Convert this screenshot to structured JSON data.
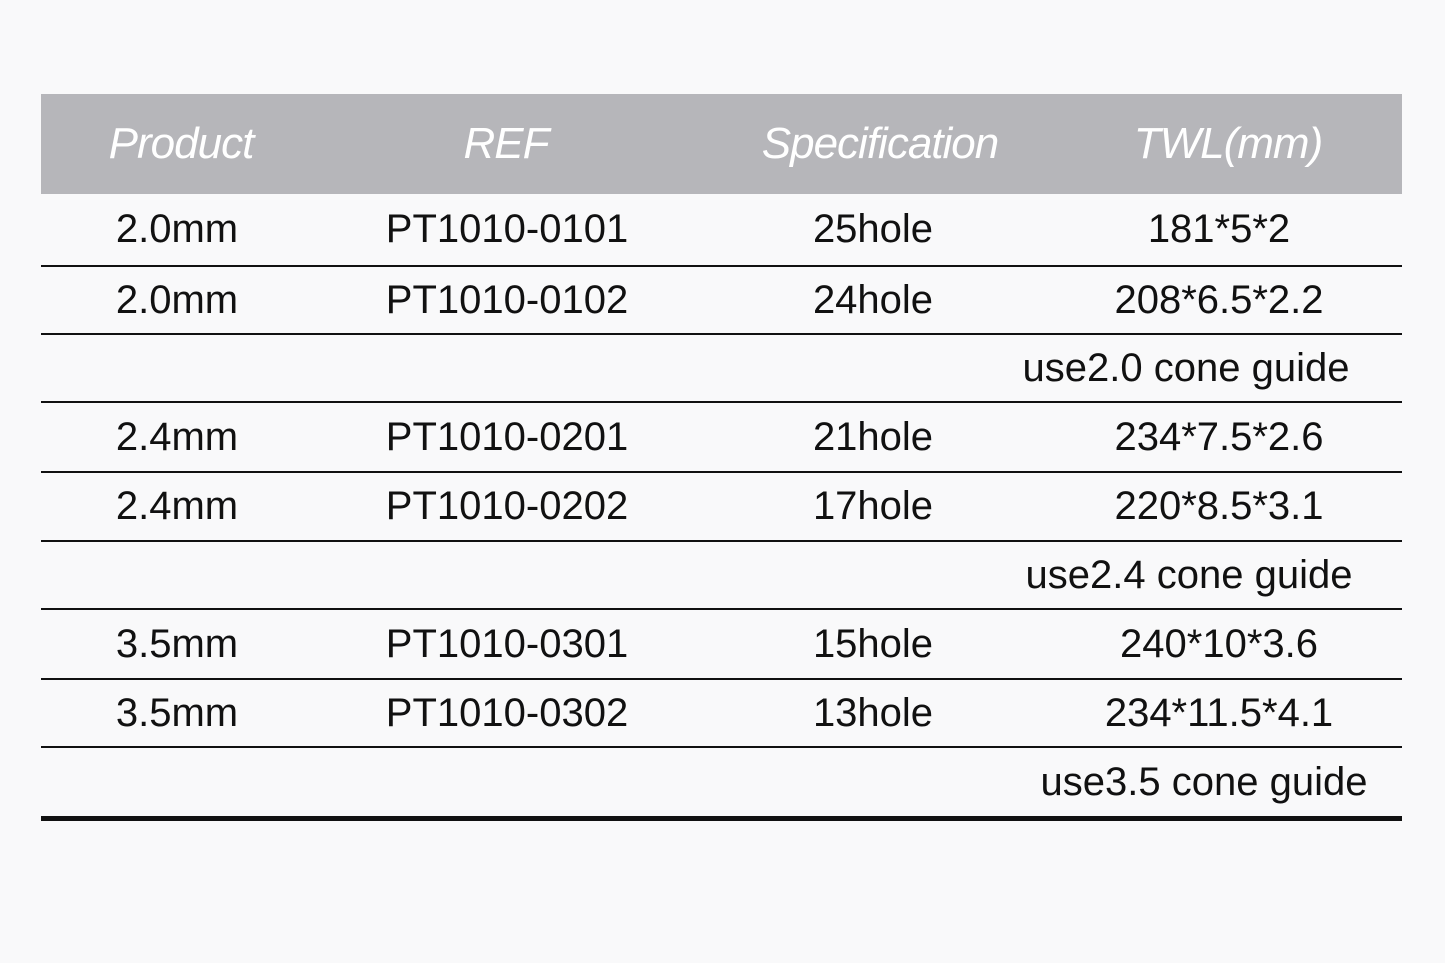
{
  "header": [
    "Product",
    "REF",
    "Specification",
    "TWL(mm)"
  ],
  "rows": [
    {
      "product": "2.0mm",
      "ref": "PT1010-0101",
      "spec": "25hole",
      "twl": "181*5*2"
    },
    {
      "product": "2.0mm",
      "ref": "PT1010-0102",
      "spec": "24hole",
      "twl": "208*6.5*2.2"
    },
    {
      "note": "use2.0 cone guide"
    },
    {
      "product": "2.4mm",
      "ref": "PT1010-0201",
      "spec": "21hole",
      "twl": "234*7.5*2.6"
    },
    {
      "product": "2.4mm",
      "ref": "PT1010-0202",
      "spec": "17hole",
      "twl": "220*8.5*3.1"
    },
    {
      "note": "use2.4 cone guide"
    },
    {
      "product": "3.5mm",
      "ref": "PT1010-0301",
      "spec": "15hole",
      "twl": "240*10*3.6"
    },
    {
      "product": "3.5mm",
      "ref": "PT1010-0302",
      "spec": "13hole",
      "twl": "234*11.5*4.1"
    },
    {
      "note": "use3.5 cone guide"
    }
  ],
  "colors": {
    "header_bg": "#b6b6ba",
    "header_text": "#ffffff",
    "rule": "#111111"
  }
}
